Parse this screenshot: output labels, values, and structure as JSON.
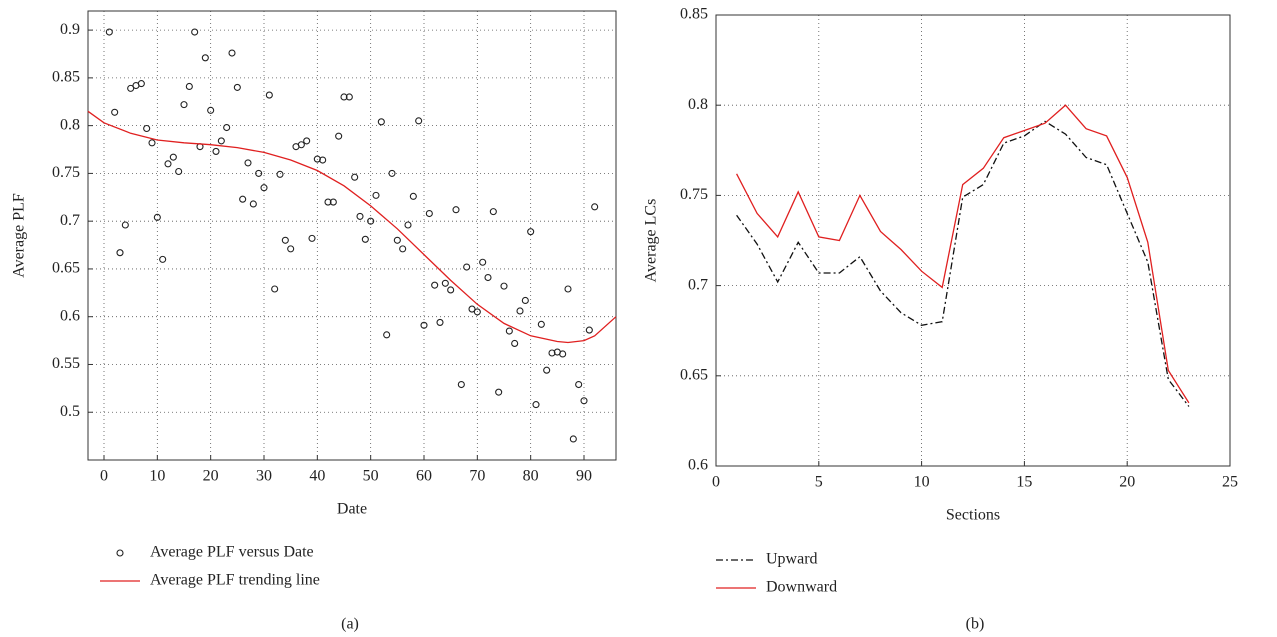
{
  "chart_data": [
    {
      "type": "scatter",
      "caption": "(a)",
      "x_label": "Date",
      "y_label": "Average PLF",
      "xlim": [
        -3,
        96
      ],
      "ylim": [
        0.45,
        0.92
      ],
      "xticks": [
        0,
        10,
        20,
        30,
        40,
        50,
        60,
        70,
        80,
        90
      ],
      "yticks": [
        0.5,
        0.55,
        0.6,
        0.65,
        0.7,
        0.75,
        0.8,
        0.85,
        0.9
      ],
      "grid": true,
      "series": [
        {
          "name": "Average PLF versus Date",
          "color": "#222222",
          "marker": "circle",
          "x": [
            1,
            2,
            3,
            4,
            5,
            6,
            7,
            8,
            9,
            10,
            11,
            12,
            13,
            14,
            15,
            16,
            17,
            18,
            19,
            20,
            21,
            22,
            23,
            24,
            25,
            26,
            27,
            28,
            29,
            30,
            31,
            32,
            33,
            34,
            35,
            36,
            37,
            38,
            39,
            40,
            41,
            42,
            43,
            44,
            45,
            46,
            47,
            48,
            49,
            50,
            51,
            52,
            53,
            54,
            55,
            56,
            57,
            58,
            59,
            60,
            61,
            62,
            63,
            64,
            65,
            66,
            67,
            68,
            69,
            70,
            71,
            72,
            73,
            74,
            75,
            76,
            77,
            78,
            79,
            80,
            81,
            82,
            83,
            84,
            85,
            86,
            87,
            88,
            89,
            90,
            91,
            92
          ],
          "values": [
            0.898,
            0.814,
            0.667,
            0.696,
            0.839,
            0.842,
            0.844,
            0.797,
            0.782,
            0.704,
            0.66,
            0.76,
            0.767,
            0.752,
            0.822,
            0.841,
            0.898,
            0.778,
            0.871,
            0.816,
            0.773,
            0.784,
            0.798,
            0.876,
            0.84,
            0.723,
            0.761,
            0.718,
            0.75,
            0.735,
            0.832,
            0.629,
            0.749,
            0.68,
            0.671,
            0.778,
            0.78,
            0.784,
            0.682,
            0.765,
            0.764,
            0.72,
            0.72,
            0.789,
            0.83,
            0.83,
            0.746,
            0.705,
            0.681,
            0.7,
            0.727,
            0.804,
            0.581,
            0.75,
            0.68,
            0.671,
            0.696,
            0.726,
            0.805,
            0.591,
            0.708,
            0.633,
            0.594,
            0.635,
            0.628,
            0.712,
            0.529,
            0.652,
            0.608,
            0.605,
            0.657,
            0.641,
            0.71,
            0.521,
            0.632,
            0.585,
            0.572,
            0.606,
            0.617,
            0.689,
            0.508,
            0.592,
            0.544,
            0.562,
            0.563,
            0.561,
            0.629,
            0.472,
            0.529,
            0.512,
            0.586,
            0.715
          ]
        },
        {
          "name": "Average PLF trending line",
          "color": "#e02020",
          "marker": "line",
          "x": [
            -3,
            0,
            5,
            10,
            15,
            20,
            25,
            30,
            35,
            40,
            45,
            50,
            55,
            60,
            65,
            70,
            75,
            80,
            85,
            87,
            90,
            92,
            96
          ],
          "values": [
            0.815,
            0.803,
            0.792,
            0.785,
            0.782,
            0.78,
            0.777,
            0.772,
            0.764,
            0.753,
            0.737,
            0.716,
            0.692,
            0.665,
            0.638,
            0.613,
            0.593,
            0.58,
            0.574,
            0.573,
            0.575,
            0.58,
            0.6
          ]
        }
      ]
    },
    {
      "type": "line",
      "caption": "(b)",
      "x_label": "Sections",
      "y_label": "Average LCs",
      "xlim": [
        0,
        25
      ],
      "ylim": [
        0.6,
        0.85
      ],
      "xticks": [
        0,
        5,
        10,
        15,
        20,
        25
      ],
      "yticks": [
        0.6,
        0.65,
        0.7,
        0.75,
        0.8,
        0.85
      ],
      "grid": true,
      "x": [
        1,
        2,
        3,
        4,
        5,
        6,
        7,
        8,
        9,
        10,
        11,
        12,
        13,
        14,
        15,
        16,
        17,
        18,
        19,
        20,
        21,
        22,
        23
      ],
      "series": [
        {
          "name": "Upward",
          "color": "#111111",
          "style": "dash-dot",
          "values": [
            0.739,
            0.723,
            0.702,
            0.724,
            0.707,
            0.707,
            0.716,
            0.697,
            0.685,
            0.678,
            0.68,
            0.749,
            0.756,
            0.779,
            0.783,
            0.791,
            0.784,
            0.771,
            0.767,
            0.74,
            0.713,
            0.648,
            0.633
          ]
        },
        {
          "name": "Downward",
          "color": "#e02020",
          "style": "solid",
          "values": [
            0.762,
            0.74,
            0.727,
            0.752,
            0.727,
            0.725,
            0.75,
            0.73,
            0.72,
            0.708,
            0.699,
            0.756,
            0.765,
            0.782,
            0.786,
            0.79,
            0.8,
            0.787,
            0.783,
            0.76,
            0.724,
            0.653,
            0.635
          ]
        }
      ]
    }
  ]
}
